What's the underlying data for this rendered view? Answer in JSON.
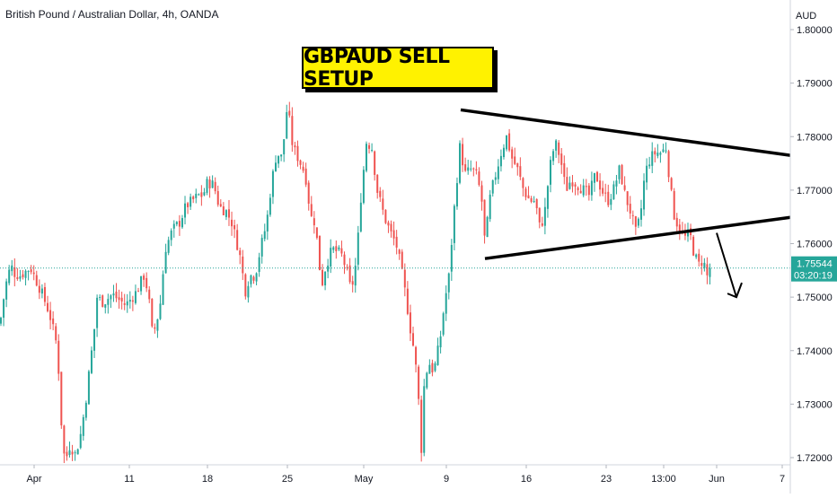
{
  "header": {
    "title": "British Pound / Australian Dollar, 4h, OANDA"
  },
  "banner": {
    "text": "GBPAUD SELL SETUP"
  },
  "price_tag": {
    "price": "1.75544",
    "countdown": "03:20:19",
    "color": "#26a69a"
  },
  "colors": {
    "up": "#26a69a",
    "down": "#ef5350",
    "pattern_lines": "#000000"
  },
  "chart_data": {
    "type": "candlestick",
    "ylabel": "AUD",
    "ylim": [
      1.7185,
      1.8035
    ],
    "y_ticks": [
      "1.80000",
      "1.79000",
      "1.78000",
      "1.77000",
      "1.76000",
      "1.75000",
      "1.74000",
      "1.73000",
      "1.72000"
    ],
    "x_ticks": [
      "Apr",
      "11",
      "18",
      "25",
      "May",
      "9",
      "16",
      "23",
      "13:00",
      "Jun",
      "7"
    ],
    "current_price": 1.75544,
    "price_path": [
      [
        0,
        1.745
      ],
      [
        6,
        1.752
      ],
      [
        12,
        1.756
      ],
      [
        16,
        1.7545
      ],
      [
        22,
        1.754
      ],
      [
        34,
        1.7555
      ],
      [
        46,
        1.751
      ],
      [
        55,
        1.747
      ],
      [
        64,
        1.7405
      ],
      [
        67,
        1.7305
      ],
      [
        70,
        1.7215
      ],
      [
        73,
        1.7195
      ],
      [
        78,
        1.7225
      ],
      [
        84,
        1.7205
      ],
      [
        90,
        1.7245
      ],
      [
        95,
        1.73
      ],
      [
        100,
        1.737
      ],
      [
        105,
        1.744
      ],
      [
        108,
        1.75
      ],
      [
        115,
        1.749
      ],
      [
        125,
        1.7505
      ],
      [
        140,
        1.7485
      ],
      [
        152,
        1.751
      ],
      [
        160,
        1.754
      ],
      [
        165,
        1.751
      ],
      [
        170,
        1.7425
      ],
      [
        178,
        1.748
      ],
      [
        184,
        1.759
      ],
      [
        192,
        1.7625
      ],
      [
        200,
        1.764
      ],
      [
        207,
        1.767
      ],
      [
        214,
        1.768
      ],
      [
        221,
        1.769
      ],
      [
        226,
        1.769
      ],
      [
        231,
        1.7715
      ],
      [
        238,
        1.771
      ],
      [
        244,
        1.767
      ],
      [
        252,
        1.766
      ],
      [
        258,
        1.764
      ],
      [
        264,
        1.76
      ],
      [
        268,
        1.757
      ],
      [
        273,
        1.751
      ],
      [
        278,
        1.754
      ],
      [
        284,
        1.754
      ],
      [
        290,
        1.759
      ],
      [
        297,
        1.764
      ],
      [
        302,
        1.771
      ],
      [
        308,
        1.777
      ],
      [
        314,
        1.776
      ],
      [
        320,
        1.786
      ],
      [
        326,
        1.778
      ],
      [
        332,
        1.776
      ],
      [
        340,
        1.773
      ],
      [
        346,
        1.765
      ],
      [
        351,
        1.764
      ],
      [
        358,
        1.752
      ],
      [
        363,
        1.756
      ],
      [
        370,
        1.759
      ],
      [
        380,
        1.758
      ],
      [
        386,
        1.755
      ],
      [
        391,
        1.751
      ],
      [
        397,
        1.757
      ],
      [
        402,
        1.769
      ],
      [
        408,
        1.779
      ],
      [
        414,
        1.778
      ],
      [
        420,
        1.77
      ],
      [
        428,
        1.765
      ],
      [
        435,
        1.762
      ],
      [
        441,
        1.76
      ],
      [
        446,
        1.756
      ],
      [
        452,
        1.75
      ],
      [
        457,
        1.744
      ],
      [
        462,
        1.739
      ],
      [
        466,
        1.731
      ],
      [
        469,
        1.721
      ],
      [
        472,
        1.733
      ],
      [
        477,
        1.738
      ],
      [
        483,
        1.736
      ],
      [
        490,
        1.742
      ],
      [
        495,
        1.749
      ],
      [
        500,
        1.754
      ],
      [
        505,
        1.765
      ],
      [
        512,
        1.778
      ],
      [
        518,
        1.773
      ],
      [
        525,
        1.774
      ],
      [
        530,
        1.773
      ],
      [
        536,
        1.769
      ],
      [
        540,
        1.76
      ],
      [
        546,
        1.769
      ],
      [
        552,
        1.773
      ],
      [
        558,
        1.777
      ],
      [
        564,
        1.78
      ],
      [
        570,
        1.776
      ],
      [
        576,
        1.774
      ],
      [
        583,
        1.77
      ],
      [
        590,
        1.768
      ],
      [
        596,
        1.768
      ],
      [
        601,
        1.763
      ],
      [
        606,
        1.765
      ],
      [
        612,
        1.774
      ],
      [
        618,
        1.779
      ],
      [
        624,
        1.776
      ],
      [
        630,
        1.77
      ],
      [
        636,
        1.772
      ],
      [
        643,
        1.771
      ],
      [
        650,
        1.77
      ],
      [
        656,
        1.769
      ],
      [
        663,
        1.773
      ],
      [
        670,
        1.77
      ],
      [
        677,
        1.768
      ],
      [
        683,
        1.77
      ],
      [
        690,
        1.774
      ],
      [
        696,
        1.769
      ],
      [
        702,
        1.766
      ],
      [
        708,
        1.762
      ],
      [
        713,
        1.765
      ],
      [
        718,
        1.773
      ],
      [
        724,
        1.776
      ],
      [
        730,
        1.777
      ],
      [
        736,
        1.777
      ],
      [
        742,
        1.778
      ],
      [
        746,
        1.771
      ],
      [
        751,
        1.765
      ],
      [
        756,
        1.763
      ],
      [
        762,
        1.761
      ],
      [
        768,
        1.762
      ],
      [
        773,
        1.758
      ],
      [
        778,
        1.756
      ],
      [
        783,
        1.757
      ],
      [
        788,
        1.7535
      ],
      [
        792,
        1.7554
      ]
    ],
    "annotations": {
      "upper_trendline": {
        "x1": 513,
        "y1": 1.785,
        "x2": 880,
        "y2": 1.7765
      },
      "lower_trendline": {
        "x1": 540,
        "y1": 1.7572,
        "x2": 880,
        "y2": 1.7649
      },
      "arrow": {
        "x1": 798,
        "y1": 1.762,
        "x2": 820,
        "y2": 1.75
      }
    }
  }
}
